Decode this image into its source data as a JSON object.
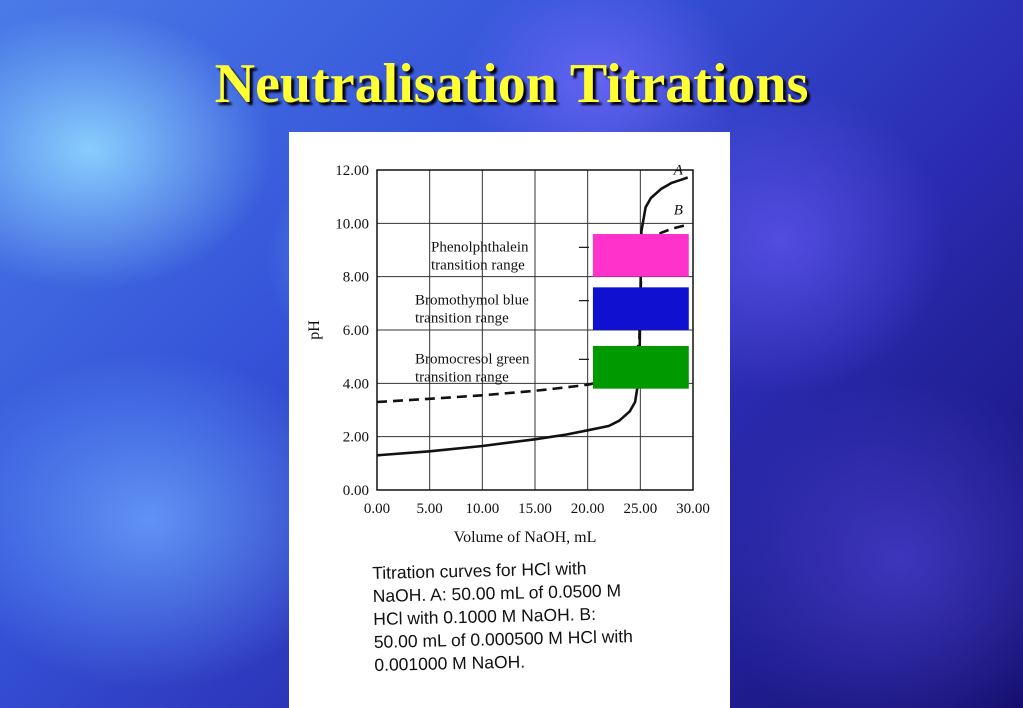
{
  "slide": {
    "title": "Neutralisation Titrations"
  },
  "chart_data": {
    "type": "line",
    "xlabel": "Volume of NaOH, mL",
    "ylabel": "pH",
    "xlim": [
      0,
      30
    ],
    "ylim": [
      0,
      12
    ],
    "x_ticks": [
      "0.00",
      "5.00",
      "10.00",
      "15.00",
      "20.00",
      "25.00",
      "30.00"
    ],
    "y_ticks": [
      "0.00",
      "2.00",
      "4.00",
      "6.00",
      "8.00",
      "10.00",
      "12.00"
    ],
    "grid": true,
    "series": [
      {
        "name": "A",
        "style": "solid",
        "x": [
          0,
          5,
          10,
          15,
          18,
          20,
          22,
          23,
          24,
          24.5,
          24.9,
          25,
          25.1,
          25.5,
          26,
          27,
          28,
          29,
          29.5
        ],
        "y": [
          1.3,
          1.45,
          1.65,
          1.9,
          2.08,
          2.24,
          2.4,
          2.6,
          2.95,
          3.3,
          4.3,
          7.0,
          9.7,
          10.6,
          10.95,
          11.3,
          11.52,
          11.65,
          11.72
        ]
      },
      {
        "name": "B",
        "style": "dashed",
        "x": [
          0,
          5,
          10,
          15,
          18,
          20,
          22,
          23,
          24,
          24.5,
          24.9,
          25,
          25.1,
          25.5,
          26,
          27,
          28,
          29,
          29.5
        ],
        "y": [
          3.3,
          3.42,
          3.55,
          3.72,
          3.85,
          3.95,
          4.12,
          4.3,
          4.6,
          4.9,
          5.6,
          7.0,
          8.4,
          9.1,
          9.4,
          9.65,
          9.8,
          9.9,
          9.95
        ]
      }
    ],
    "indicator_ranges": [
      {
        "label_line1": "Phenolphthalein",
        "label_line2": "transition range",
        "ymin": 8.0,
        "ymax": 9.6,
        "color": "#ff33cc"
      },
      {
        "label_line1": "Bromothymol blue",
        "label_line2": "transition range",
        "ymin": 6.0,
        "ymax": 7.6,
        "color": "#1010d0"
      },
      {
        "label_line1": "Bromocresol green",
        "label_line2": "transition range",
        "ymin": 3.8,
        "ymax": 5.4,
        "color": "#009900"
      }
    ],
    "caption": [
      "Titration curves for HCl with",
      "NaOH. A: 50.00 mL of 0.0500 M",
      "HCl with 0.1000 M NaOH. B:",
      "50.00 mL of 0.000500 M HCl with",
      "0.001000 M NaOH."
    ]
  }
}
